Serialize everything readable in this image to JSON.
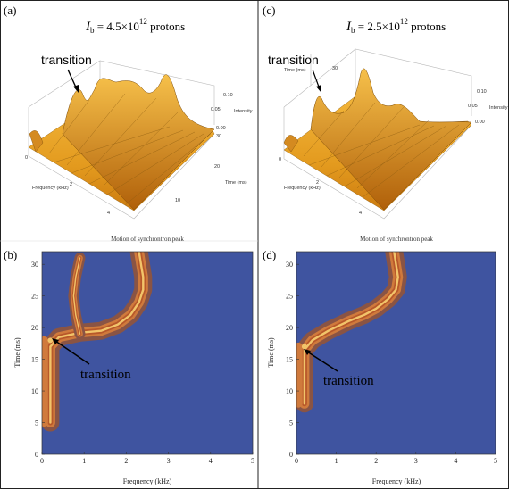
{
  "panels": {
    "a": {
      "letter": "(a)",
      "ib_symbol": "I",
      "ib_sub": "b",
      "ib_value": " = 4.5×10",
      "ib_exp": "12",
      "ib_unit": " protons",
      "transition": "transition"
    },
    "b": {
      "letter": "(b)",
      "title": "Motion of synchrontron peak",
      "transition": "transition"
    },
    "c": {
      "letter": "(c)",
      "ib_symbol": "I",
      "ib_sub": "b",
      "ib_value": " = 2.5×10",
      "ib_exp": "12",
      "ib_unit": " protons",
      "transition": "transition"
    },
    "d": {
      "letter": "(d)",
      "title": "Motion of synchrontron peak",
      "transition": "transition"
    }
  },
  "surface_axes": {
    "frequency_label": "Frequency (kHz)",
    "time_label": "Time (ms)",
    "intensity_label": "Intensity",
    "frequency_ticks": [
      "0",
      "2",
      "4"
    ],
    "time_ticks": [
      "10",
      "20",
      "30"
    ],
    "intensity_ticks": [
      "0.00",
      "0.05",
      "0.10"
    ]
  },
  "chart_data": [
    {
      "type": "heatmap",
      "panel": "(b)",
      "title": "Motion of synchrontron peak",
      "xlabel": "Frequency (kHz)",
      "ylabel": "Time (ms)",
      "xlim": [
        0,
        5
      ],
      "ylim": [
        0,
        32
      ],
      "x_ticks": [
        "0",
        "1",
        "2",
        "3",
        "4",
        "5"
      ],
      "y_ticks": [
        "0",
        "5",
        "10",
        "15",
        "20",
        "25",
        "30"
      ],
      "annotation": "transition",
      "transition_point": [
        0.2,
        18
      ],
      "peak_track": [
        [
          0.2,
          5
        ],
        [
          0.2,
          12
        ],
        [
          0.2,
          17
        ],
        [
          0.4,
          18.5
        ],
        [
          0.9,
          19.2
        ],
        [
          1.4,
          19.5
        ],
        [
          1.8,
          20.5
        ],
        [
          2.1,
          22
        ],
        [
          2.3,
          24
        ],
        [
          2.4,
          26
        ],
        [
          2.4,
          28
        ],
        [
          2.35,
          30
        ],
        [
          2.3,
          32
        ]
      ],
      "secondary_track": [
        [
          0.9,
          19
        ],
        [
          0.8,
          22
        ],
        [
          0.75,
          25
        ],
        [
          0.8,
          28
        ],
        [
          0.9,
          31
        ]
      ],
      "colors": {
        "background": "#3f54a0",
        "low": "#8a5444",
        "mid": "#d07a3c",
        "high": "#f2c46a"
      }
    },
    {
      "type": "heatmap",
      "panel": "(d)",
      "title": "Motion of synchrontron peak",
      "xlabel": "Frequency (kHz)",
      "ylabel": "Time (ms)",
      "xlim": [
        0,
        5
      ],
      "ylim": [
        0,
        32
      ],
      "x_ticks": [
        "0",
        "1",
        "2",
        "3",
        "4",
        "5"
      ],
      "y_ticks": [
        "0",
        "5",
        "10",
        "15",
        "20",
        "25",
        "30"
      ],
      "annotation": "transition",
      "transition_point": [
        0.2,
        17
      ],
      "peak_track": [
        [
          0.2,
          8
        ],
        [
          0.2,
          13
        ],
        [
          0.2,
          16.5
        ],
        [
          0.4,
          18
        ],
        [
          0.8,
          19.5
        ],
        [
          1.3,
          21
        ],
        [
          1.7,
          22
        ],
        [
          2.0,
          23
        ],
        [
          2.3,
          24.5
        ],
        [
          2.5,
          26
        ],
        [
          2.55,
          28
        ],
        [
          2.5,
          30
        ],
        [
          2.45,
          32
        ]
      ],
      "colors": {
        "background": "#3f54a0",
        "low": "#8a5444",
        "mid": "#d07a3c",
        "high": "#f2c46a"
      }
    }
  ]
}
